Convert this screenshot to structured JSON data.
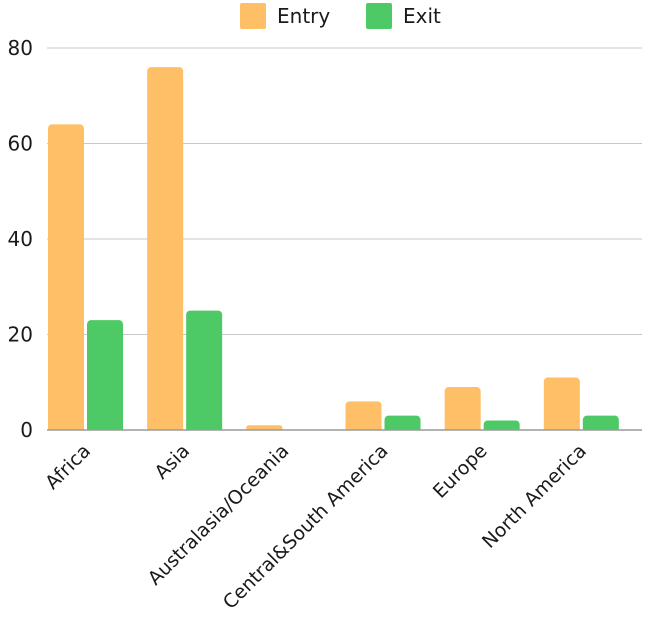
{
  "chart_data": {
    "type": "bar",
    "title": "",
    "xlabel": "",
    "ylabel": "",
    "categories": [
      "Africa",
      "Asia",
      "Australasia/Oceania",
      "Central&South America",
      "Europe",
      "North America"
    ],
    "series": [
      {
        "name": "Entry",
        "color": "#FFBF66",
        "values": [
          64,
          76,
          1,
          6,
          9,
          11
        ]
      },
      {
        "name": "Exit",
        "color": "#4DC966",
        "values": [
          23,
          25,
          0,
          3,
          2,
          3
        ]
      }
    ],
    "ylim": [
      0,
      80
    ],
    "yticks": [
      0,
      20,
      40,
      60,
      80
    ],
    "grid": true,
    "legend_position": "top"
  }
}
